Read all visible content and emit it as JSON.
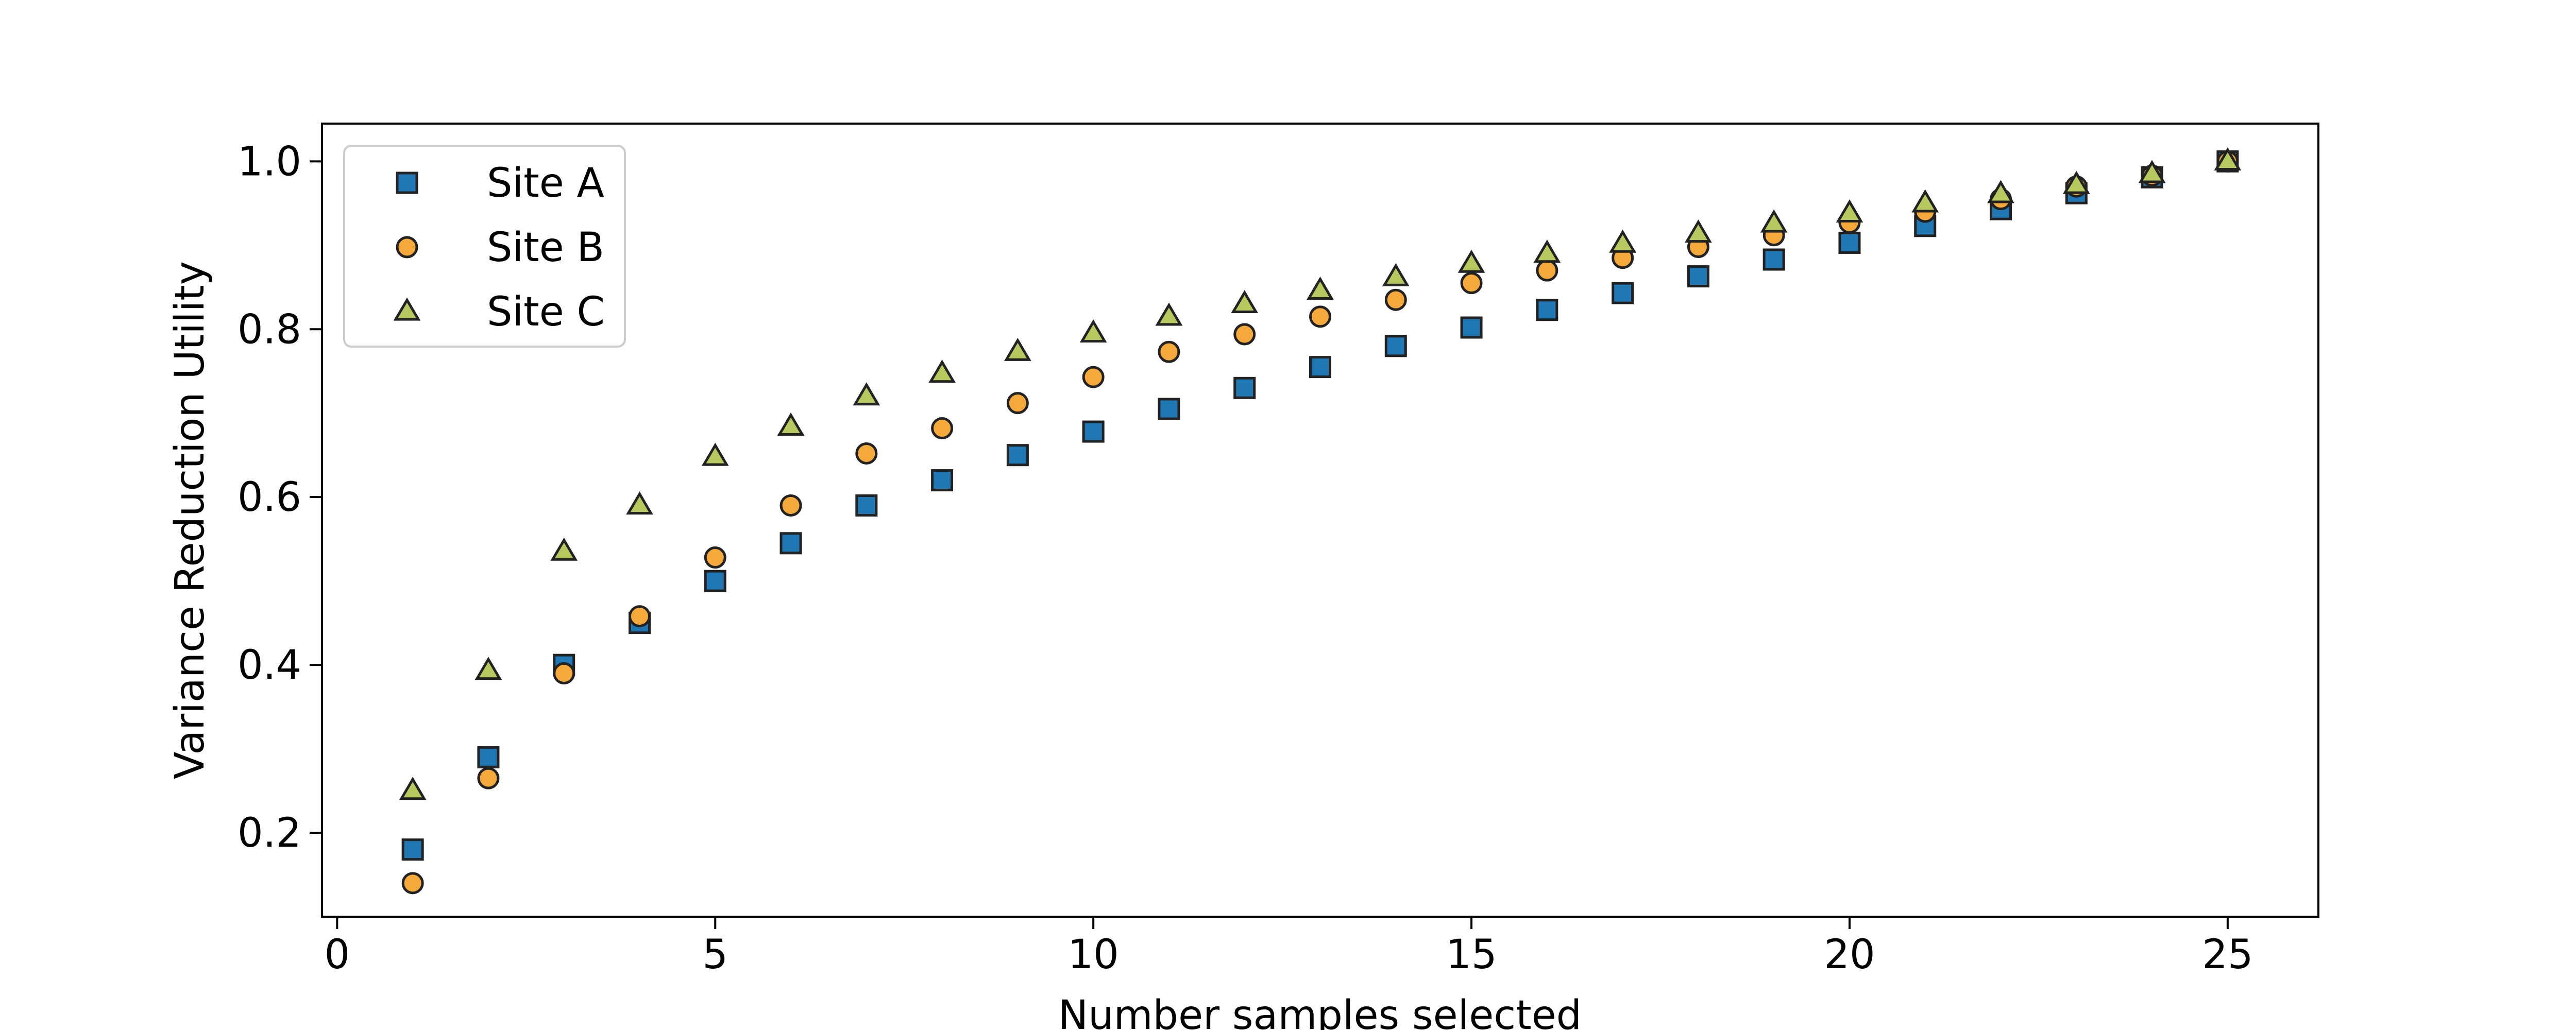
{
  "chart_data": {
    "type": "scatter",
    "title": "",
    "xlabel": "Number samples selected",
    "ylabel": "Variance Reduction Utility",
    "xlim": [
      -0.2,
      26.2
    ],
    "ylim": [
      0.1,
      1.045
    ],
    "xticks": [
      0,
      5,
      10,
      15,
      20,
      25
    ],
    "yticks": [
      0.2,
      0.4,
      0.6,
      0.8,
      1.0
    ],
    "xtick_labels": [
      "0",
      "5",
      "10",
      "15",
      "20",
      "25"
    ],
    "ytick_labels": [
      "0.2",
      "0.4",
      "0.6",
      "0.8",
      "1.0"
    ],
    "grid": false,
    "legend_position": "top-left",
    "x": [
      1,
      2,
      3,
      4,
      5,
      6,
      7,
      8,
      9,
      10,
      11,
      12,
      13,
      14,
      15,
      16,
      17,
      18,
      19,
      20,
      21,
      22,
      23,
      24,
      25
    ],
    "series": [
      {
        "name": "Site A",
        "marker": "square",
        "color": "#1f77b4",
        "values": [
          0.18,
          0.29,
          0.4,
          0.45,
          0.5,
          0.545,
          0.59,
          0.62,
          0.65,
          0.678,
          0.705,
          0.73,
          0.755,
          0.78,
          0.802,
          0.823,
          0.843,
          0.863,
          0.883,
          0.903,
          0.923,
          0.943,
          0.962,
          0.981,
          1.0
        ]
      },
      {
        "name": "Site B",
        "marker": "circle",
        "color": "#f5a93b",
        "values": [
          0.14,
          0.265,
          0.39,
          0.458,
          0.528,
          0.59,
          0.652,
          0.682,
          0.712,
          0.743,
          0.773,
          0.794,
          0.815,
          0.835,
          0.855,
          0.87,
          0.885,
          0.898,
          0.912,
          0.927,
          0.94,
          0.955,
          0.97,
          0.983,
          1.0
        ]
      },
      {
        "name": "Site C",
        "marker": "triangle",
        "color": "#b6c95f",
        "values": [
          0.25,
          0.393,
          0.535,
          0.59,
          0.648,
          0.684,
          0.72,
          0.747,
          0.773,
          0.795,
          0.815,
          0.83,
          0.846,
          0.862,
          0.878,
          0.89,
          0.902,
          0.914,
          0.926,
          0.938,
          0.95,
          0.961,
          0.972,
          0.985,
          1.0
        ]
      }
    ]
  }
}
